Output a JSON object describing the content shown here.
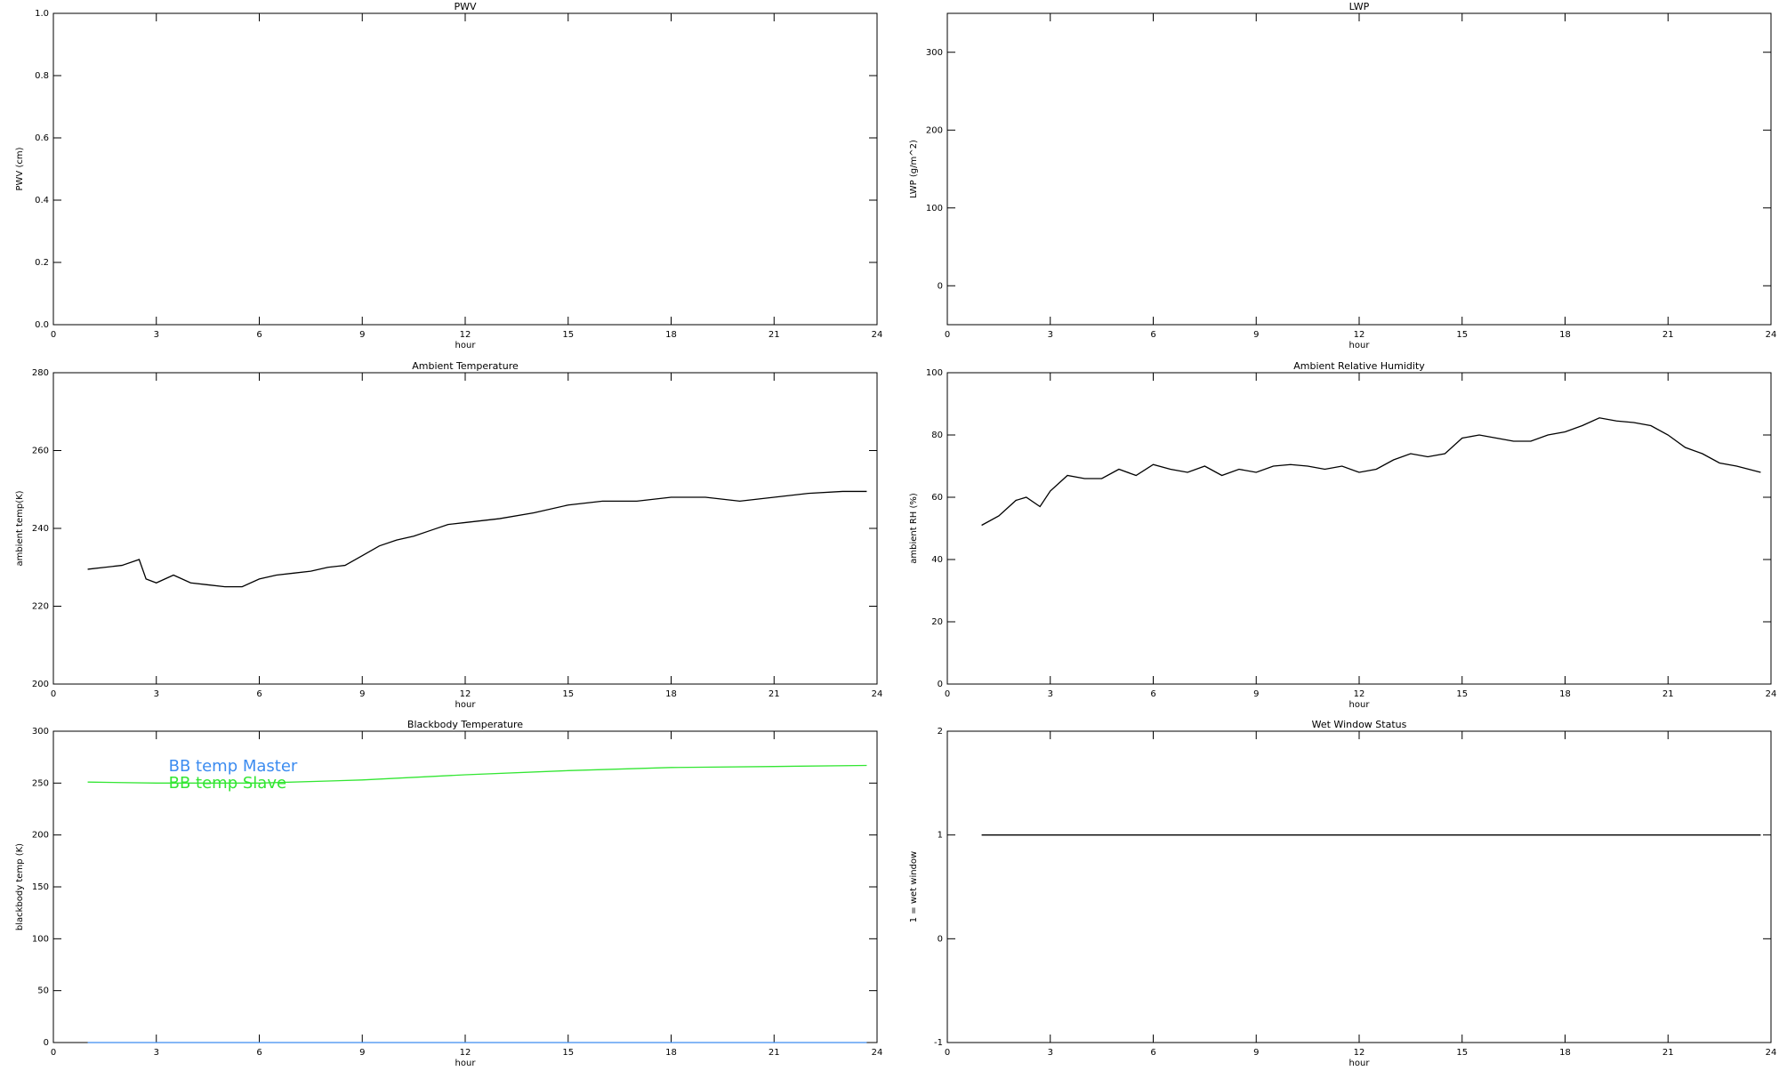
{
  "chart_data": [
    {
      "type": "line",
      "title": "PWV",
      "xlabel": "hour",
      "ylabel": "PWV (cm)",
      "xlim": [
        0,
        24
      ],
      "xticks": [
        0,
        3,
        6,
        9,
        12,
        15,
        18,
        21,
        24
      ],
      "ylim": [
        0,
        1
      ],
      "yticks": [
        {
          "value": 0,
          "label": "0.0"
        },
        0.2,
        0.4,
        0.6,
        0.8,
        {
          "value": 1,
          "label": "1.0"
        }
      ],
      "x": [],
      "series": []
    },
    {
      "type": "line",
      "title": "LWP",
      "xlabel": "hour",
      "ylabel": "LWP (g/m^2)",
      "xlim": [
        0,
        24
      ],
      "xticks": [
        0,
        3,
        6,
        9,
        12,
        15,
        18,
        21,
        24
      ],
      "ylim": [
        -50,
        350
      ],
      "yticks": [
        0,
        100,
        200,
        300
      ],
      "x": [],
      "series": []
    },
    {
      "type": "line",
      "title": "Ambient Temperature",
      "xlabel": "hour",
      "ylabel": "ambient temp(K)",
      "xlim": [
        0,
        24
      ],
      "xticks": [
        0,
        3,
        6,
        9,
        12,
        15,
        18,
        21,
        24
      ],
      "ylim": [
        200,
        280
      ],
      "yticks": [
        200,
        220,
        240,
        260,
        280
      ],
      "x": [
        1.0,
        1.5,
        2.0,
        2.5,
        2.7,
        3.0,
        3.5,
        4.0,
        4.5,
        5.0,
        5.5,
        6.0,
        6.5,
        7.0,
        7.5,
        8.0,
        8.5,
        9.0,
        9.5,
        10.0,
        10.5,
        11.0,
        11.5,
        12.0,
        13,
        14,
        15,
        16,
        17,
        18,
        19,
        20,
        21,
        22,
        23,
        23.7
      ],
      "series": [
        {
          "color": "#000000",
          "values": [
            229.5,
            230,
            230.5,
            232,
            227,
            226,
            228,
            226,
            225.5,
            225,
            225,
            227,
            228,
            228.5,
            229,
            230,
            230.5,
            233,
            235.5,
            237,
            238,
            239.5,
            241,
            241.5,
            242.5,
            244,
            246,
            247,
            247,
            248,
            248,
            247,
            248,
            249,
            249.5,
            249.5
          ]
        }
      ]
    },
    {
      "type": "line",
      "title": "Ambient Relative Humidity",
      "xlabel": "hour",
      "ylabel": "ambient RH (%)",
      "xlim": [
        0,
        24
      ],
      "xticks": [
        0,
        3,
        6,
        9,
        12,
        15,
        18,
        21,
        24
      ],
      "ylim": [
        0,
        100
      ],
      "yticks": [
        0,
        20,
        40,
        60,
        80,
        100
      ],
      "x": [
        1.0,
        1.5,
        2.0,
        2.3,
        2.7,
        3.0,
        3.5,
        4,
        4.5,
        5,
        5.5,
        6,
        6.5,
        7,
        7.5,
        8,
        8.5,
        9,
        9.5,
        10,
        10.5,
        11,
        11.5,
        12,
        12.5,
        13,
        13.5,
        14,
        14.5,
        15,
        15.5,
        16,
        16.5,
        17,
        17.5,
        18,
        18.5,
        19,
        19.5,
        20,
        20.5,
        21,
        21.5,
        22,
        22.5,
        23,
        23.7
      ],
      "series": [
        {
          "color": "#000000",
          "values": [
            51,
            54,
            59,
            60,
            57,
            62,
            67,
            66,
            66,
            69,
            67,
            70.5,
            69,
            68,
            70,
            67,
            69,
            68,
            70,
            70.5,
            70,
            69,
            70,
            68,
            69,
            72,
            74,
            73,
            74,
            79,
            80,
            79,
            78,
            78,
            80,
            81,
            83,
            85.5,
            84.5,
            84,
            83,
            80,
            76,
            74,
            71,
            70,
            68
          ]
        }
      ]
    },
    {
      "type": "line",
      "title": "Blackbody Temperature",
      "xlabel": "hour",
      "ylabel": "blackbody temp (K)",
      "xlim": [
        0,
        24
      ],
      "xticks": [
        0,
        3,
        6,
        9,
        12,
        15,
        18,
        21,
        24
      ],
      "ylim": [
        0,
        300
      ],
      "yticks": [
        0,
        50,
        100,
        150,
        200,
        250,
        300
      ],
      "legend": "upper left",
      "x": [
        1,
        3,
        6,
        9,
        12,
        15,
        18,
        21,
        23.7
      ],
      "series": [
        {
          "name": "BB temp Master",
          "color": "#3c8cf0",
          "values": [
            0,
            0,
            0,
            0,
            0,
            0,
            0,
            0,
            0
          ]
        },
        {
          "name": "BB temp Slave",
          "color": "#33e633",
          "values": [
            251,
            250,
            250,
            253,
            258,
            262,
            265,
            266,
            267
          ]
        }
      ]
    },
    {
      "type": "line",
      "title": "Wet Window Status",
      "xlabel": "hour",
      "ylabel": "1 = wet window",
      "xlim": [
        0,
        24
      ],
      "xticks": [
        0,
        3,
        6,
        9,
        12,
        15,
        18,
        21,
        24
      ],
      "ylim": [
        -1,
        2
      ],
      "yticks": [
        -1,
        0,
        1,
        2
      ],
      "x": [
        1,
        23.7
      ],
      "series": [
        {
          "color": "#000000",
          "values": [
            1,
            1
          ]
        }
      ]
    }
  ]
}
